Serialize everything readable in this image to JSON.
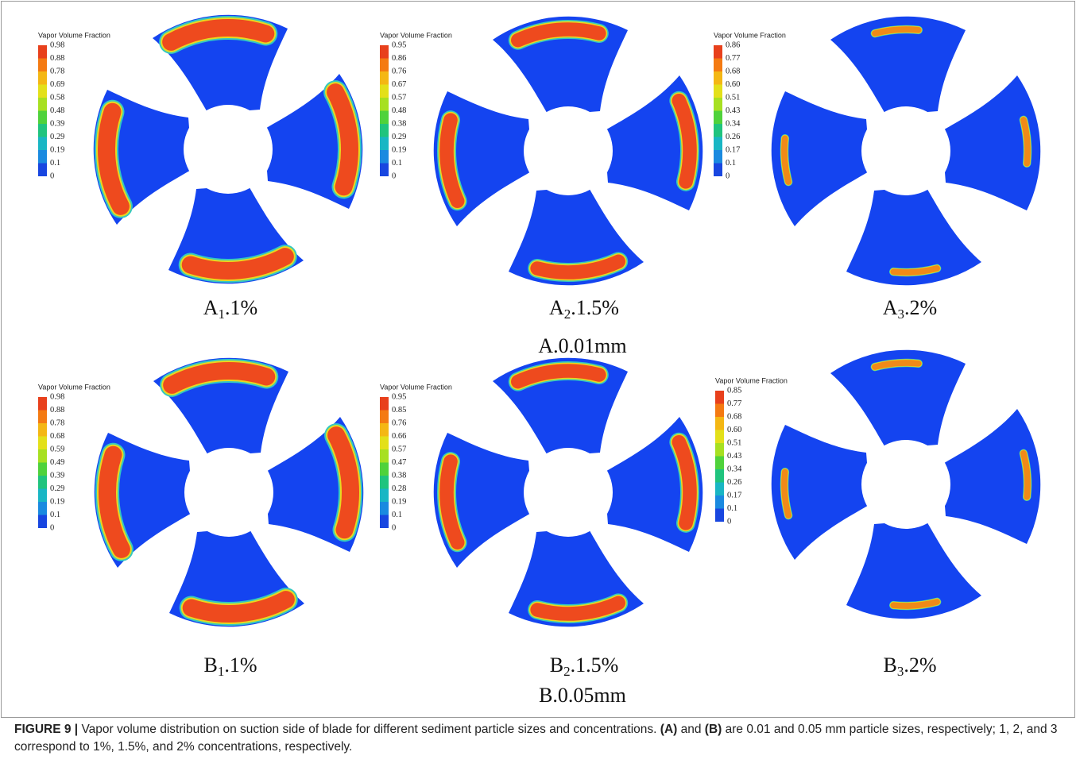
{
  "figure": {
    "groups": [
      {
        "label": "A.0.01mm",
        "panels": [
          {
            "legend_title": "Vapor Volume Fraction",
            "legend_levels": [
              "0.98",
              "0.88",
              "0.78",
              "0.69",
              "0.58",
              "0.48",
              "0.39",
              "0.29",
              "0.19",
              "0.1",
              "0"
            ],
            "label": {
              "letter": "A",
              "sub": "1",
              "rest": ".1%"
            }
          },
          {
            "legend_title": "Vapor Volume Fraction",
            "legend_levels": [
              "0.95",
              "0.86",
              "0.76",
              "0.67",
              "0.57",
              "0.48",
              "0.38",
              "0.29",
              "0.19",
              "0.1",
              "0"
            ],
            "label": {
              "letter": "A",
              "sub": "2",
              "rest": ".1.5%"
            }
          },
          {
            "legend_title": "Vapor Volume Fraction",
            "legend_levels": [
              "0.86",
              "0.77",
              "0.68",
              "0.60",
              "0.51",
              "0.43",
              "0.34",
              "0.26",
              "0.17",
              "0.1",
              "0"
            ],
            "label": {
              "letter": "A",
              "sub": "3",
              "rest": ".2%"
            }
          }
        ]
      },
      {
        "label": "B.0.05mm",
        "panels": [
          {
            "legend_title": "Vapor Volume Fraction",
            "legend_levels": [
              "0.98",
              "0.88",
              "0.78",
              "0.68",
              "0.59",
              "0.49",
              "0.39",
              "0.29",
              "0.19",
              "0.1",
              "0"
            ],
            "label": {
              "letter": "B",
              "sub": "1",
              "rest": ".1%"
            }
          },
          {
            "legend_title": "Vapor Volume Fraction",
            "legend_levels": [
              "0.95",
              "0.85",
              "0.76",
              "0.66",
              "0.57",
              "0.47",
              "0.38",
              "0.28",
              "0.19",
              "0.1",
              "0"
            ],
            "label": {
              "letter": "B",
              "sub": "2",
              "rest": ".1.5%"
            }
          },
          {
            "legend_title": "Vapor Volume Fraction",
            "legend_levels": [
              "0.85",
              "0.77",
              "0.68",
              "0.60",
              "0.51",
              "0.43",
              "0.34",
              "0.26",
              "0.17",
              "0.1",
              "0"
            ],
            "label": {
              "letter": "B",
              "sub": "3",
              "rest": ".2%"
            }
          }
        ]
      }
    ]
  },
  "caption": {
    "figure_label": "FIGURE 9 |",
    "parts": [
      {
        "text": " Vapor volume distribution on suction side of blade for different sediment particle sizes and concentrations. ",
        "bold": false
      },
      {
        "text": "(A)",
        "bold": true
      },
      {
        "text": " and ",
        "bold": false
      },
      {
        "text": "(B)",
        "bold": true
      },
      {
        "text": " are 0.01 and 0.05 mm particle sizes, respectively; 1, 2, and 3 correspond to 1%, 1.5%, and 2% concentrations, respectively.",
        "bold": false
      }
    ]
  }
}
